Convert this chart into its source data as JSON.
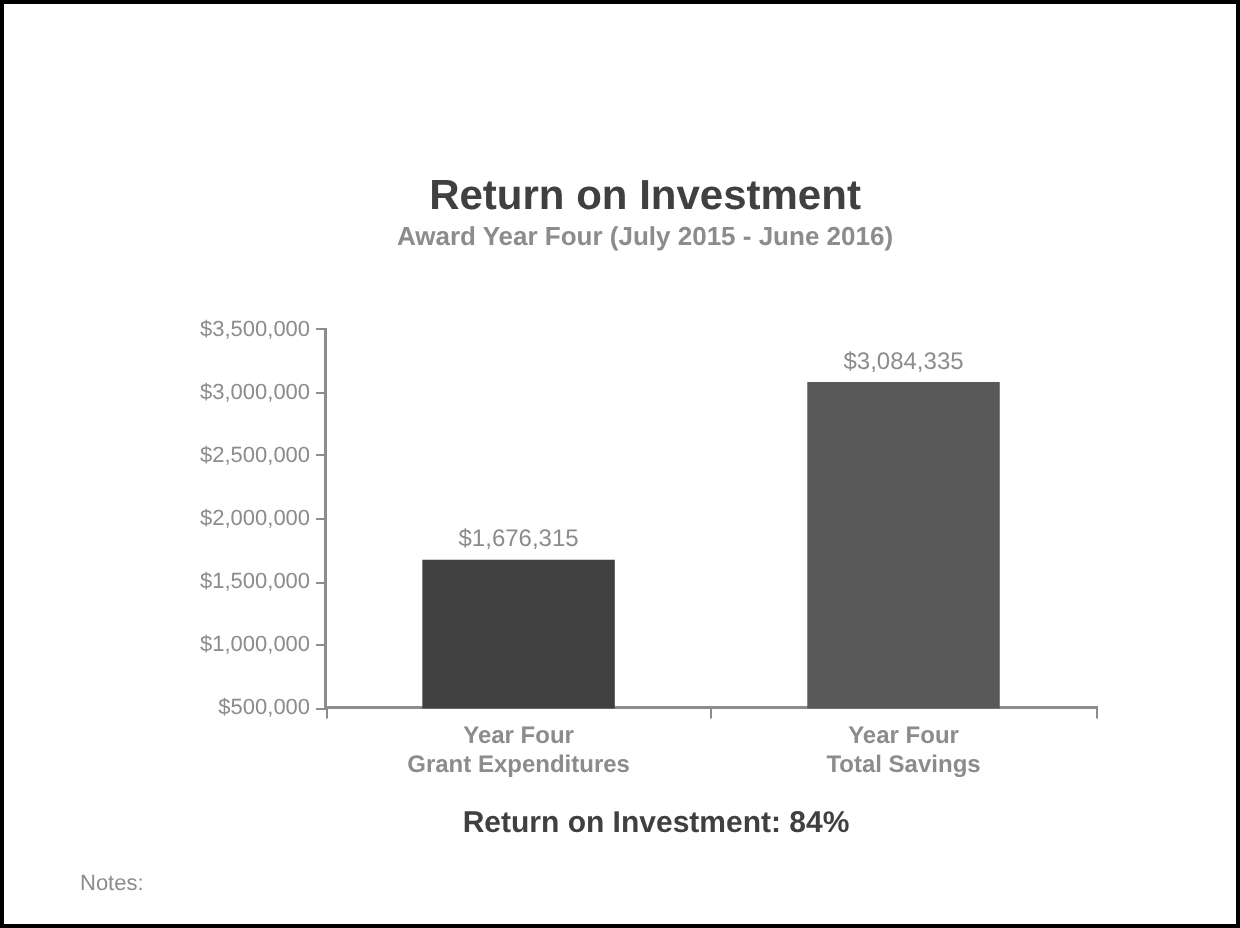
{
  "chart_data": {
    "type": "bar",
    "title": "Return on Investment",
    "subtitle": "Award Year Four (July 2015 - June 2016)",
    "categories": [
      "Year Four\nGrant Expenditures",
      "Year Four\nTotal Savings"
    ],
    "values": [
      1676315,
      3084335
    ],
    "colors": [
      "#404040",
      "#595959"
    ],
    "value_labels": [
      "$1,676,315",
      "$3,084,335"
    ],
    "ylim": [
      500000,
      3500000
    ],
    "yticks": [
      {
        "value": 500000,
        "label": "$500,000"
      },
      {
        "value": 1000000,
        "label": "$1,000,000"
      },
      {
        "value": 1500000,
        "label": "$1,500,000"
      },
      {
        "value": 2000000,
        "label": "$2,000,000"
      },
      {
        "value": 2500000,
        "label": "$2,500,000"
      },
      {
        "value": 3000000,
        "label": "$3,000,000"
      },
      {
        "value": 3500000,
        "label": "$3,500,000"
      }
    ],
    "grid": false,
    "legend": false,
    "annotations": [
      "Return on Investment: 84%",
      "Notes:"
    ]
  }
}
